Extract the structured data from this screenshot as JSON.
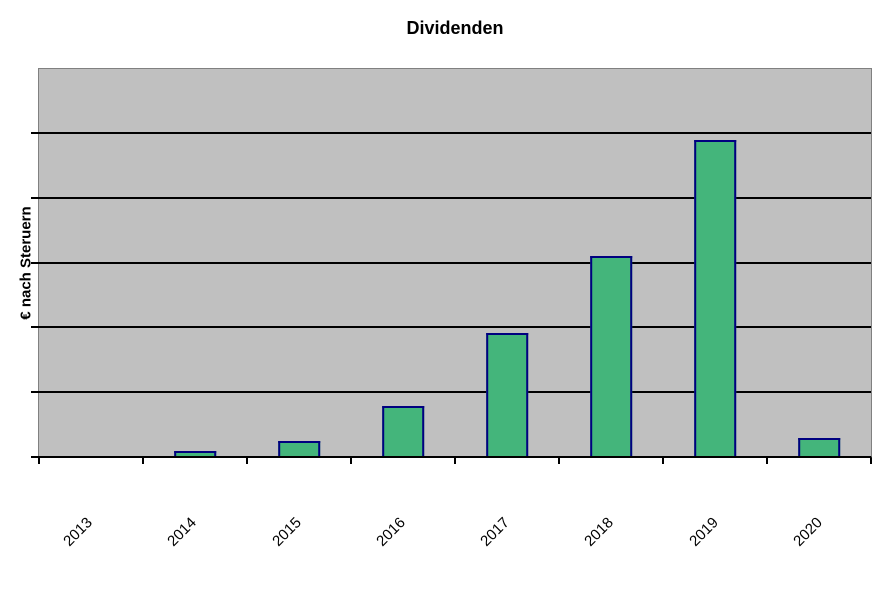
{
  "chart_data": {
    "type": "bar",
    "title": "Dividenden",
    "xlabel": "",
    "ylabel": "€ nach Steruern",
    "categories": [
      "2013",
      "2014",
      "2015",
      "2016",
      "2017",
      "2018",
      "2019",
      "2020"
    ],
    "values": [
      0,
      0.08,
      0.23,
      0.77,
      1.9,
      3.1,
      4.9,
      0.28
    ],
    "ylim": [
      0,
      6
    ],
    "grid_divisions": 6,
    "gridlines": "horizontal",
    "y_tick_labels_visible": false,
    "legend": "none",
    "x_label_rotation_deg": -45,
    "colors": {
      "bar_fill": "#44B57B",
      "bar_border": "#000080",
      "plot_background": "#C0C0C0",
      "plot_border": "#808080",
      "gridline": "#000000",
      "axis": "#000000",
      "page_background": "#FFFFFF",
      "text": "#000000"
    }
  }
}
